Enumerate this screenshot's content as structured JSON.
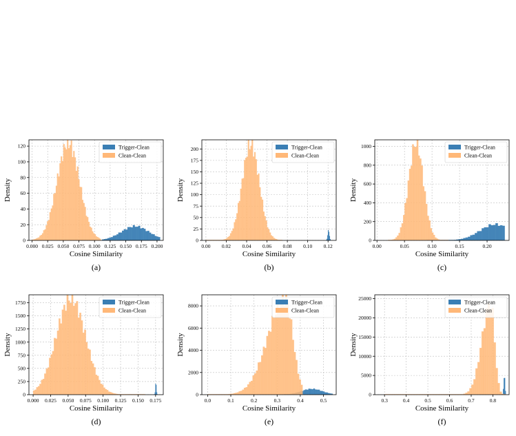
{
  "colors": {
    "trigger": "#3a7eb4",
    "clean": "#ffb878",
    "grid": "#bdbdbd"
  },
  "chart_data": [
    {
      "type": "histogram",
      "caption": "(a)",
      "xlabel": "Cosine Similarity",
      "ylabel": "Density",
      "xlim": [
        -0.005,
        0.21
      ],
      "ylim": [
        0,
        128
      ],
      "xticks": [
        0.0,
        0.025,
        0.05,
        0.075,
        0.1,
        0.125,
        0.15,
        0.175,
        0.2
      ],
      "xtick_labels": [
        "0.000",
        "0.025",
        "0.050",
        "0.075",
        "0.100",
        "0.125",
        "0.150",
        "0.175",
        "0.200"
      ],
      "yticks": [
        0,
        20,
        40,
        60,
        80,
        100,
        120
      ],
      "ytick_labels": [
        "0",
        "20",
        "40",
        "60",
        "80",
        "100",
        "120"
      ],
      "grid": true,
      "legend": "top-right",
      "series": [
        {
          "name": "Trigger-Clean",
          "color": "trigger",
          "center": 0.165,
          "sd": 0.022,
          "peak": 18,
          "range": [
            0.112,
            0.205
          ],
          "bins": 32
        },
        {
          "name": "Clean-Clean",
          "color": "clean",
          "center": 0.058,
          "sd": 0.018,
          "peak": 124,
          "range": [
            0.0,
            0.11
          ],
          "bins": 55
        }
      ]
    },
    {
      "type": "histogram",
      "caption": "(b)",
      "xlabel": "Cosine Similarity",
      "ylabel": "Density",
      "xlim": [
        -0.004,
        0.128
      ],
      "ylim": [
        0,
        220
      ],
      "xticks": [
        0.0,
        0.02,
        0.04,
        0.06,
        0.08,
        0.1,
        0.12
      ],
      "xtick_labels": [
        "0.00",
        "0.02",
        "0.04",
        "0.06",
        "0.08",
        "0.10",
        "0.12"
      ],
      "yticks": [
        0,
        25,
        50,
        75,
        100,
        125,
        150,
        175,
        200
      ],
      "ytick_labels": [
        "0",
        "25",
        "50",
        "75",
        "100",
        "125",
        "150",
        "175",
        "200"
      ],
      "grid": true,
      "legend": "top-right",
      "series": [
        {
          "name": "Trigger-Clean",
          "color": "trigger",
          "center": 0.1205,
          "sd": 0.0008,
          "peak": 22,
          "range": [
            0.118,
            0.1225
          ],
          "bins": 7
        },
        {
          "name": "Clean-Clean",
          "color": "clean",
          "center": 0.044,
          "sd": 0.0085,
          "peak": 210,
          "range": [
            0.0,
            0.075
          ],
          "bins": 60
        }
      ]
    },
    {
      "type": "histogram",
      "caption": "(c)",
      "xlabel": "Cosine Similarity",
      "ylabel": "Density",
      "xlim": [
        -0.004,
        0.24
      ],
      "ylim": [
        0,
        1070
      ],
      "xticks": [
        0.0,
        0.05,
        0.1,
        0.15,
        0.2
      ],
      "xtick_labels": [
        "0.00",
        "0.05",
        "0.10",
        "0.15",
        "0.20"
      ],
      "yticks": [
        0,
        200,
        400,
        600,
        800,
        1000
      ],
      "ytick_labels": [
        "0",
        "200",
        "400",
        "600",
        "800",
        "1000"
      ],
      "grid": true,
      "legend": "top-right",
      "series": [
        {
          "name": "Trigger-Clean",
          "color": "trigger",
          "center": 0.215,
          "sd": 0.028,
          "peak": 170,
          "range": [
            0.09,
            0.232
          ],
          "bins": 34
        },
        {
          "name": "Clean-Clean",
          "color": "clean",
          "center": 0.071,
          "sd": 0.0135,
          "peak": 1040,
          "range": [
            0.02,
            0.13
          ],
          "bins": 40
        }
      ]
    },
    {
      "type": "histogram",
      "caption": "(d)",
      "xlabel": "Cosine Similarity",
      "ylabel": "Density",
      "xlim": [
        -0.006,
        0.186
      ],
      "ylim": [
        0,
        1900
      ],
      "xticks": [
        0.0,
        0.025,
        0.05,
        0.075,
        0.1,
        0.125,
        0.15,
        0.175
      ],
      "xtick_labels": [
        "0.000",
        "0.025",
        "0.050",
        "0.075",
        "0.100",
        "0.125",
        "0.150",
        "0.175"
      ],
      "yticks": [
        0,
        250,
        500,
        750,
        1000,
        1250,
        1500,
        1750
      ],
      "ytick_labels": [
        "0",
        "250",
        "500",
        "750",
        "1000",
        "1250",
        "1500",
        "1750"
      ],
      "grid": true,
      "legend": "top-right",
      "series": [
        {
          "name": "Trigger-Clean",
          "color": "trigger",
          "center": 0.1755,
          "sd": 0.0007,
          "peak": 230,
          "range": [
            0.173,
            0.178
          ],
          "bins": 6
        },
        {
          "name": "Clean-Clean",
          "color": "clean",
          "center": 0.054,
          "sd": 0.021,
          "peak": 1830,
          "range": [
            0.0,
            0.16
          ],
          "bins": 70
        }
      ]
    },
    {
      "type": "histogram",
      "caption": "(e)",
      "xlabel": "Cosine Similarity",
      "ylabel": "Density",
      "xlim": [
        -0.025,
        0.555
      ],
      "ylim": [
        0,
        9000
      ],
      "xticks": [
        0.0,
        0.1,
        0.2,
        0.3,
        0.4,
        0.5
      ],
      "xtick_labels": [
        "0.0",
        "0.1",
        "0.2",
        "0.3",
        "0.4",
        "0.5"
      ],
      "yticks": [
        0,
        2000,
        4000,
        6000,
        8000
      ],
      "ytick_labels": [
        "0",
        "2000",
        "4000",
        "6000",
        "8000"
      ],
      "grid": true,
      "legend": "top-right",
      "series": [
        {
          "name": "Trigger-Clean",
          "color": "trigger",
          "center": 0.45,
          "sd": 0.045,
          "peak": 520,
          "range": [
            0.33,
            0.54
          ],
          "bins": 30
        },
        {
          "name": "Clean-Clean",
          "color": "clean",
          "center": 0.335,
          "sd": 0.033,
          "peak": 8700,
          "range": [
            0.0,
            0.41
          ],
          "bins": 55,
          "left_tail_sd": 0.075
        }
      ]
    },
    {
      "type": "histogram",
      "caption": "(f)",
      "xlabel": "Cosine Similarity",
      "ylabel": "Density",
      "xlim": [
        0.255,
        0.875
      ],
      "ylim": [
        0,
        26000
      ],
      "xticks": [
        0.3,
        0.4,
        0.5,
        0.6,
        0.7,
        0.8
      ],
      "xtick_labels": [
        "0.3",
        "0.4",
        "0.5",
        "0.6",
        "0.7",
        "0.8"
      ],
      "yticks": [
        0,
        5000,
        10000,
        15000,
        20000,
        25000
      ],
      "ytick_labels": [
        "0",
        "5000",
        "10000",
        "15000",
        "20000",
        "25000"
      ],
      "grid": true,
      "legend": "top-right",
      "series": [
        {
          "name": "Trigger-Clean",
          "color": "trigger",
          "center": 0.853,
          "sd": 0.003,
          "peak": 5000,
          "range": [
            0.84,
            0.86
          ],
          "bins": 6
        },
        {
          "name": "Clean-Clean",
          "color": "clean",
          "center": 0.79,
          "sd": 0.018,
          "peak": 24000,
          "range": [
            0.3,
            0.86
          ],
          "bins": 60,
          "left_tail_sd": 0.04
        }
      ]
    }
  ]
}
